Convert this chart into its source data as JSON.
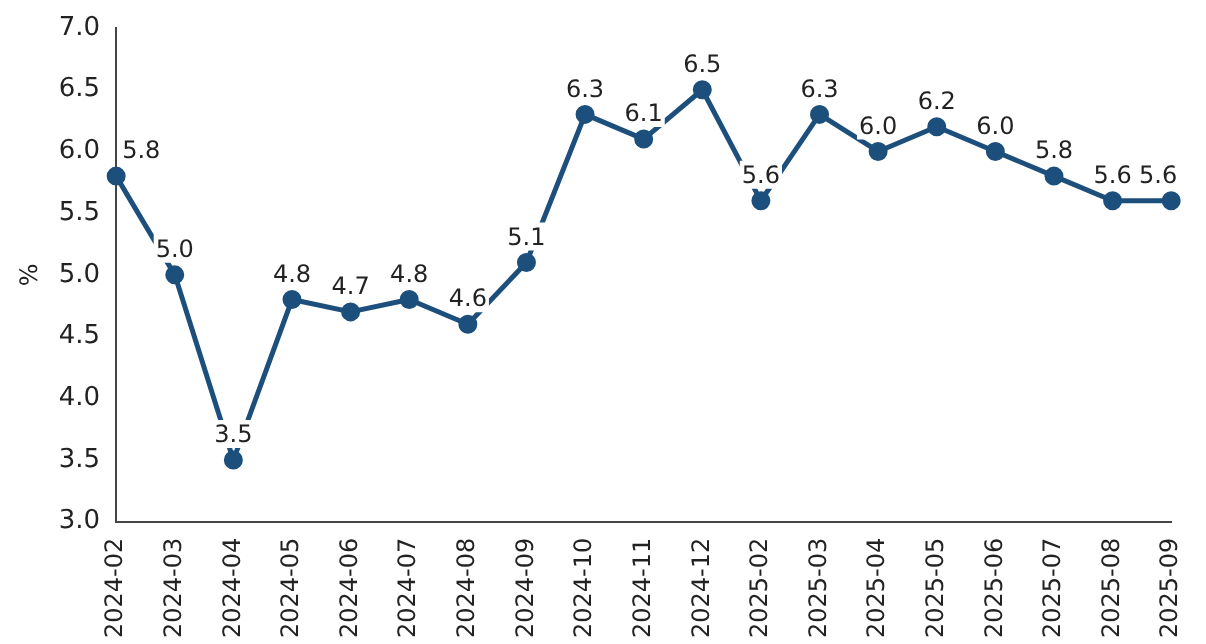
{
  "chart_data": {
    "type": "line",
    "ylabel": "%",
    "categories": [
      "2024-02",
      "2024-03",
      "2024-04",
      "2024-05",
      "2024-06",
      "2024-07",
      "2024-08",
      "2024-09",
      "2024-10",
      "2024-11",
      "2024-12",
      "2025-02",
      "2025-03",
      "2025-04",
      "2025-05",
      "2025-06",
      "2025-07",
      "2025-08",
      "2025-09"
    ],
    "series": [
      {
        "color": "#1c4f7c",
        "values": [
          5.8,
          5.0,
          3.5,
          4.8,
          4.7,
          4.8,
          4.6,
          5.1,
          6.3,
          6.1,
          6.5,
          5.6,
          6.3,
          6.0,
          6.2,
          6.0,
          5.8,
          5.6,
          5.6
        ],
        "value_labels": [
          "5.8",
          "5.0",
          "3.5",
          "4.8",
          "4.7",
          "4.8",
          "4.6",
          "5.1",
          "6.3",
          "6.1",
          "6.5",
          "5.6",
          "6.3",
          "6.0",
          "6.2",
          "6.0",
          "5.8",
          "5.6",
          "5.6"
        ]
      }
    ],
    "ylim": [
      3,
      7
    ],
    "yticks": [
      {
        "value": 3,
        "label": "3.0"
      },
      {
        "value": 3.5,
        "label": "3.5"
      },
      {
        "value": 4,
        "label": "4.0"
      },
      {
        "value": 4.5,
        "label": "4.5"
      },
      {
        "value": 5,
        "label": "5.0"
      },
      {
        "value": 5.5,
        "label": "5.5"
      },
      {
        "value": 6,
        "label": "6.0"
      },
      {
        "value": 6.5,
        "label": "6.5"
      },
      {
        "value": 7,
        "label": "7.0"
      }
    ],
    "grid": false,
    "legend": false,
    "marker": "circle",
    "line_style": "solid"
  }
}
